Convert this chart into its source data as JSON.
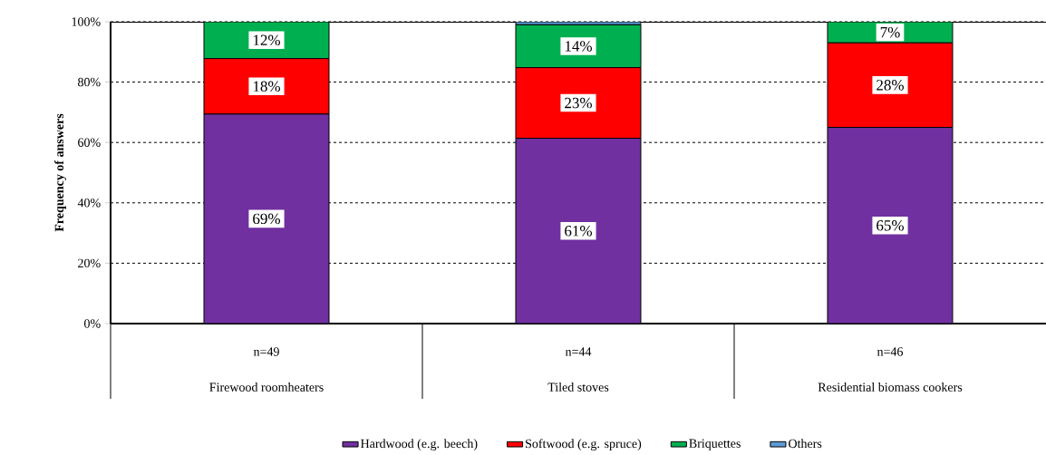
{
  "chart_data": {
    "type": "bar",
    "stacked": true,
    "ylabel": "Frequency of answers",
    "categories": [
      "Firewood roomheaters",
      "Tiled stoves",
      "Residential biomass cookers"
    ],
    "annotations": [
      "n=49",
      "n=44",
      "n=46"
    ],
    "series": [
      {
        "name": "Hardwood (e.g. beech)",
        "color": "#7030a0",
        "values": [
          69.4,
          61.4,
          65
        ],
        "value_labels": [
          "69%",
          "61%",
          "65%"
        ]
      },
      {
        "name": "Softwood (e.g. spruce)",
        "color": "#ff0000",
        "values": [
          18.4,
          23.4,
          28
        ],
        "value_labels": [
          "18%",
          "23%",
          "28%"
        ]
      },
      {
        "name": "Briquettes",
        "color": "#00b050",
        "values": [
          12.2,
          14.2,
          7
        ],
        "value_labels": [
          "12%",
          "14%",
          "7%"
        ]
      },
      {
        "name": "Others",
        "color": "#5b9bd5",
        "values": [
          null,
          1,
          null
        ]
      }
    ],
    "ylim": [
      0,
      100
    ],
    "yticks": [
      {
        "value": 0,
        "label": "0%"
      },
      {
        "value": 20,
        "label": "20%"
      },
      {
        "value": 40,
        "label": "40%"
      },
      {
        "value": 60,
        "label": "60%"
      },
      {
        "value": 80,
        "label": "80%"
      },
      {
        "value": 100,
        "label": "100%"
      }
    ],
    "grid": "y",
    "line_style": "dashed",
    "legend": "bottom"
  }
}
